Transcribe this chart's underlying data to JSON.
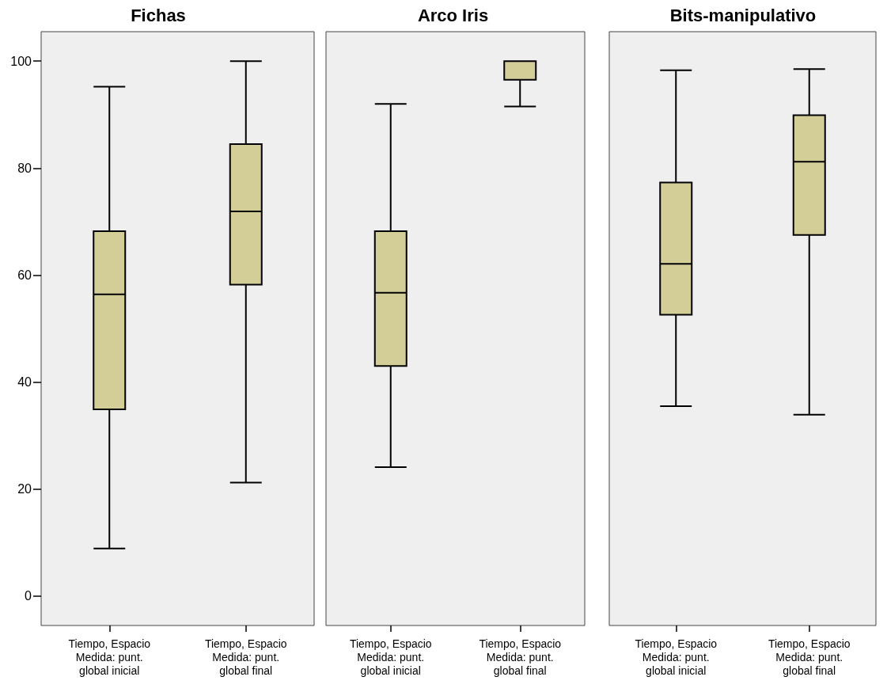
{
  "chart_data": [
    {
      "type": "box",
      "title": "Fichas",
      "categories": [
        "Tiempo, Espacio\nMedida: punt.\nglobal inicial",
        "Tiempo, Espacio\nMedida: punt.\nglobal final"
      ],
      "ylim": [
        -5.5,
        105.5
      ],
      "yticks": [
        0,
        20,
        40,
        60,
        80,
        100
      ],
      "series": [
        {
          "color": "#d3cd98",
          "boxes": [
            {
              "low": 8.9,
              "q1": 34.9,
              "median": 56.4,
              "q3": 68.2,
              "high": 95.2
            },
            {
              "low": 21.2,
              "q1": 58.2,
              "median": 71.9,
              "q3": 84.5,
              "high": 100
            }
          ]
        }
      ]
    },
    {
      "type": "box",
      "title": "Arco Iris",
      "categories": [
        "Tiempo, Espacio\nMedida: punt.\nglobal inicial",
        "Tiempo, Espacio\nMedida: punt.\nglobal final"
      ],
      "ylim": [
        -5.5,
        105.5
      ],
      "tick_labels": "x",
      "series": [
        {
          "color": "#d3cd98",
          "boxes": [
            {
              "low": 24.1,
              "q1": 43.0,
              "median": 56.7,
              "q3": 68.2,
              "high": 92.0
            },
            {
              "low": 91.5,
              "q1": 96.5,
              "median": 100,
              "q3": 100,
              "high": 100
            }
          ]
        }
      ]
    },
    {
      "type": "box",
      "title": "Bits-manipulativo",
      "categories": [
        "Tiempo, Espacio\nMedida: punt.\nglobal inicial",
        "Tiempo, Espacio\nMedida: punt.\nglobal final"
      ],
      "ylim": [
        -5.5,
        105.5
      ],
      "tick_labels": "x",
      "series": [
        {
          "color": "#d3cd98",
          "boxes": [
            {
              "low": 35.5,
              "q1": 52.6,
              "median": 62.1,
              "q3": 77.3,
              "high": 98.3
            },
            {
              "low": 33.9,
              "q1": 67.5,
              "median": 81.2,
              "q3": 89.9,
              "high": 98.5
            }
          ]
        }
      ]
    }
  ]
}
